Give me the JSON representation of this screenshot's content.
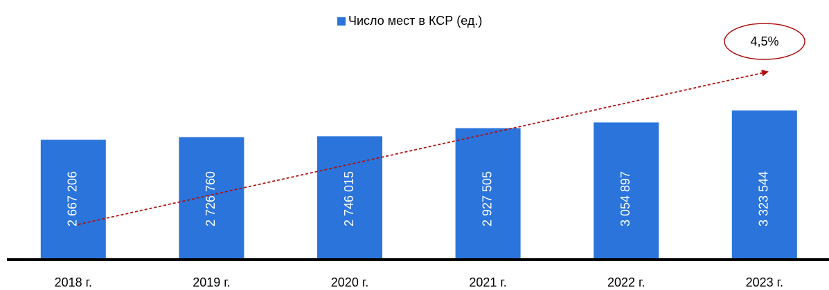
{
  "chart_data": {
    "type": "bar",
    "categories": [
      "2018 г.",
      "2019 г.",
      "2020 г.",
      "2021 г.",
      "2022 г.",
      "2023 г."
    ],
    "series": [
      {
        "name": "Число мест в КСР (ед.)",
        "color": "#2a74db",
        "values": [
          2667206,
          2726760,
          2746015,
          2927505,
          3054897,
          3323544
        ],
        "value_labels": [
          "2 667 206",
          "2 726 760",
          "2 746 015",
          "2 927 505",
          "3 054 897",
          "3 323 544"
        ]
      }
    ],
    "annotation": "4,5%"
  }
}
